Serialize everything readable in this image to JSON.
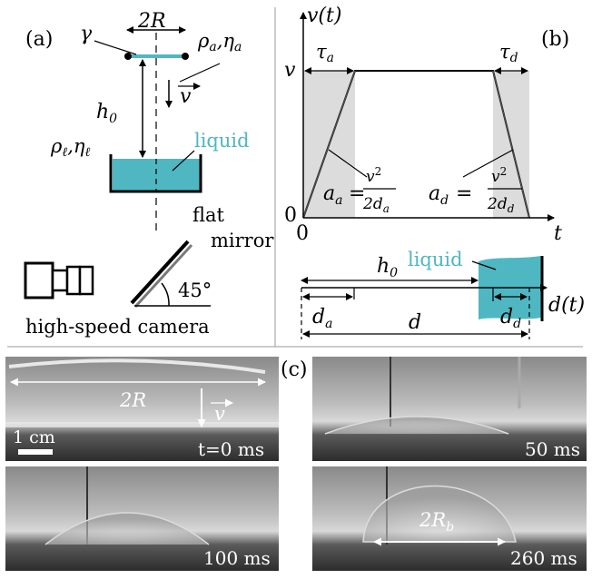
{
  "panel_a": {
    "label": "(a)",
    "two_r": "2R",
    "gamma": "γ",
    "rho_a": "ρ",
    "rho_a_sub": "a",
    "eta_a": ",η",
    "eta_a_sub": "a",
    "v_arrow": "v",
    "h0": "h",
    "h0_sub": "0",
    "rho_l": "ρ",
    "rho_l_sub": "ℓ",
    "eta_l": ",η",
    "eta_l_sub": "ℓ",
    "liquid": "liquid",
    "flat": "flat",
    "mirror": "mirror",
    "angle": "45°",
    "camera": "high-speed camera"
  },
  "panel_b": {
    "label": "(b)",
    "y_axis": "v(t)",
    "y_tick_v": "v",
    "y_tick_0": "0",
    "x_tick_0": "0",
    "x_axis": "t",
    "tau_a": "τ",
    "tau_a_sub": "a",
    "tau_d": "τ",
    "tau_d_sub": "d",
    "a_a_lhs": "a",
    "a_a_lhs_sub": "a",
    "a_d_lhs": "a",
    "a_d_lhs_sub": "d",
    "eq": "=",
    "frac_num": "v",
    "frac_num_sup": "2",
    "frac_den_a": "2d",
    "frac_den_a_sub": "a",
    "frac_den_d": "2d",
    "frac_den_d_sub": "d",
    "h0": "h",
    "h0_sub": "0",
    "liquid": "liquid",
    "d_a": "d",
    "d_a_sub": "a",
    "d": "d",
    "d_d": "d",
    "d_d_sub": "d",
    "d_t": "d(t)"
  },
  "panel_c": {
    "label": "(c)",
    "two_r": "2R",
    "v_arrow": "v",
    "scale": "1 cm",
    "t0": "t=0 ms",
    "t50": "50 ms",
    "t100": "100 ms",
    "t260": "260 ms",
    "two_rb": "2R",
    "two_rb_sub": "b"
  },
  "colors": {
    "liquid": "#4fb7c2",
    "shade": "#dcdcdc",
    "ink": "#000000"
  }
}
